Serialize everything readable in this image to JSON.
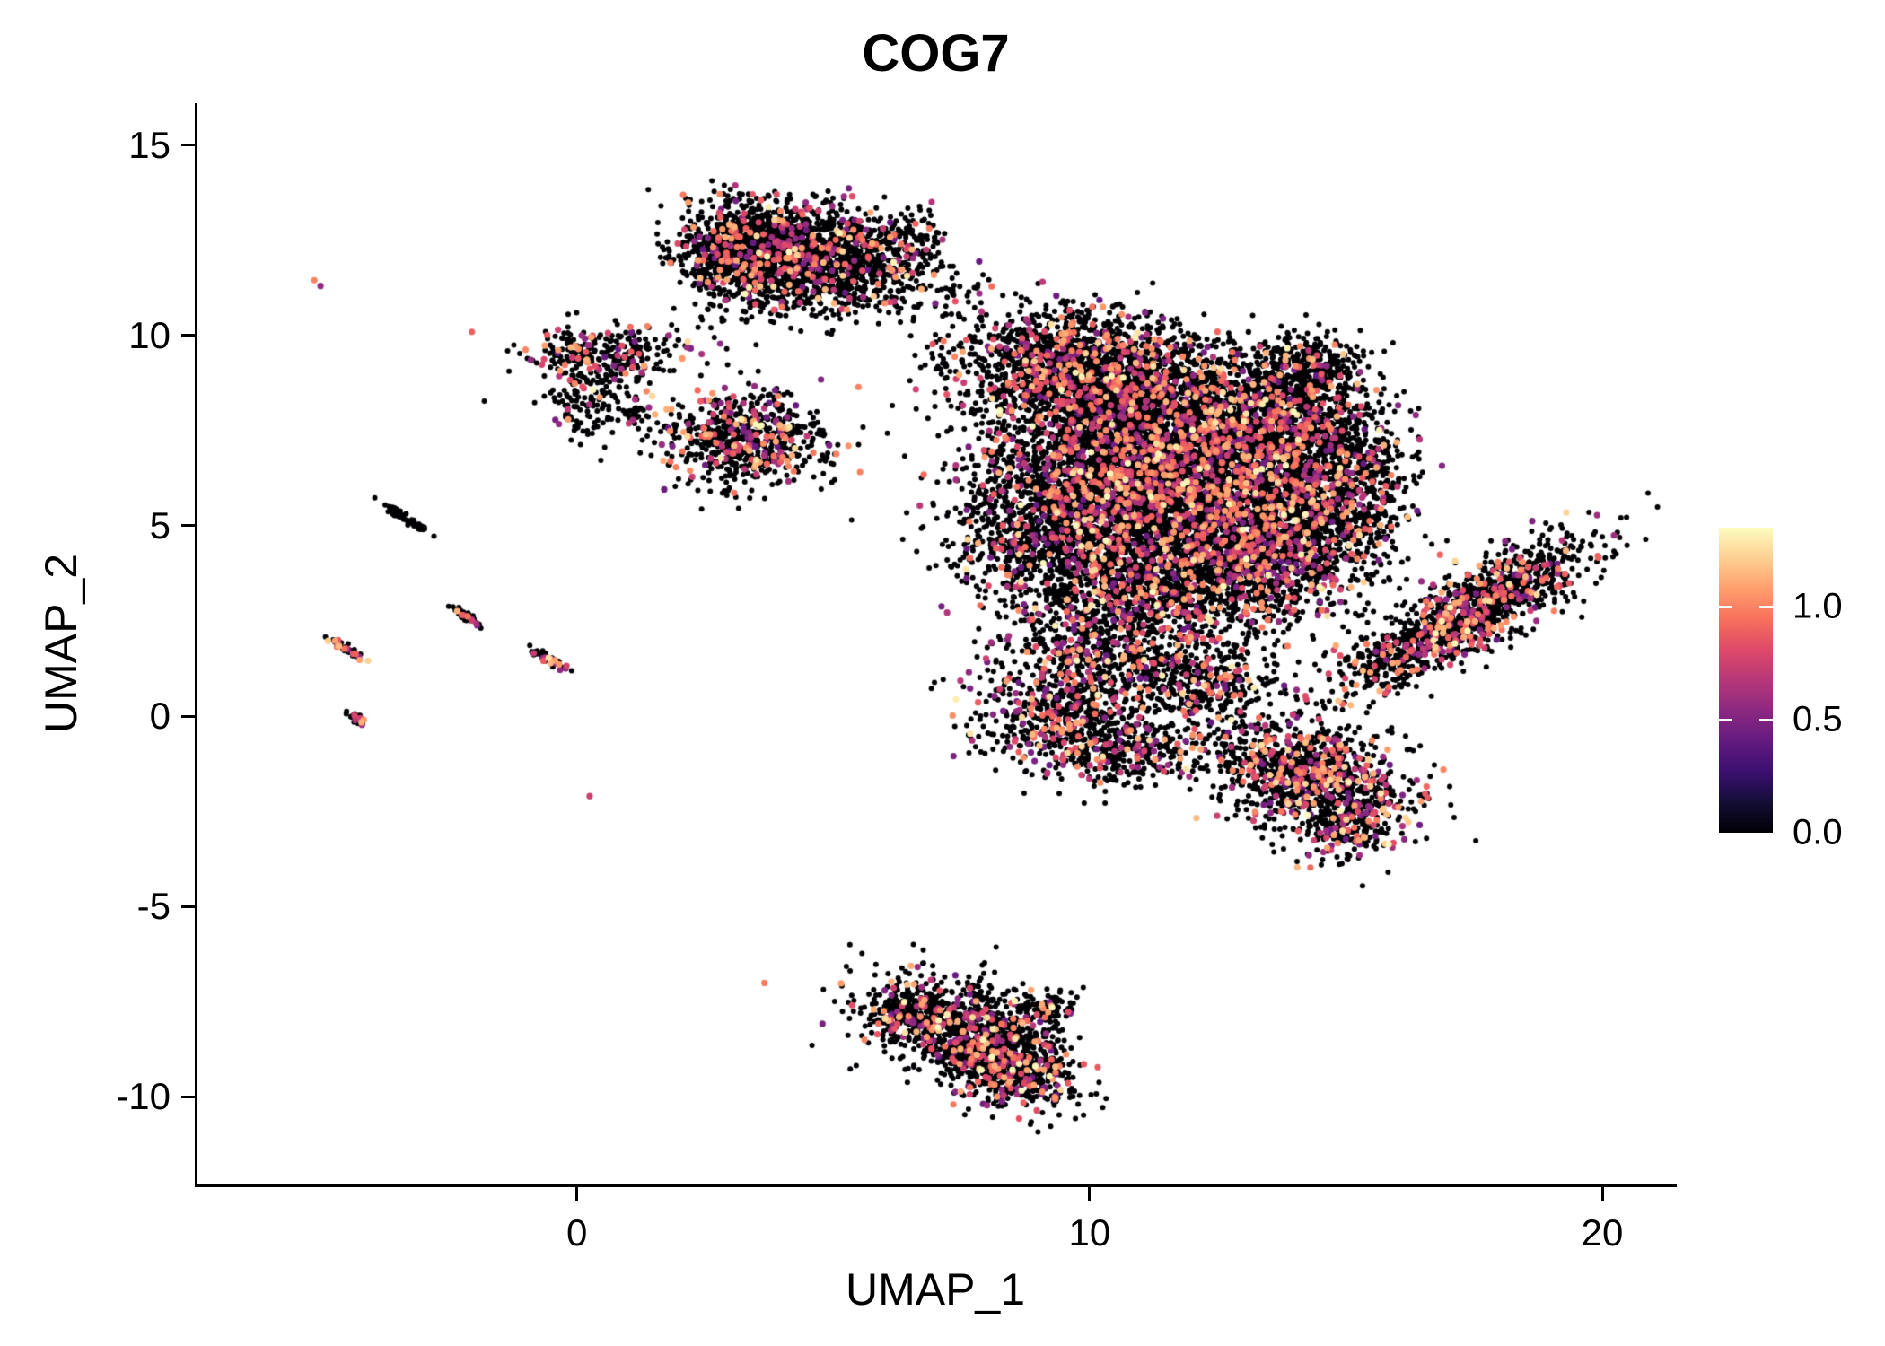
{
  "title": "COG7",
  "axes": {
    "xlabel": "UMAP_1",
    "ylabel": "UMAP_2",
    "xlim": [
      -7.4,
      21.4
    ],
    "ylim": [
      -12.3,
      16.1
    ],
    "x_ticks": [
      {
        "value": 0,
        "label": "0"
      },
      {
        "value": 10,
        "label": "10"
      },
      {
        "value": 20,
        "label": "20"
      }
    ],
    "y_ticks": [
      {
        "value": 15,
        "label": "15"
      },
      {
        "value": 10,
        "label": "10"
      },
      {
        "value": 5,
        "label": "5"
      },
      {
        "value": 0,
        "label": "0"
      },
      {
        "value": -5,
        "label": "-5"
      },
      {
        "value": -10,
        "label": "-10"
      }
    ]
  },
  "colorbar": {
    "domain": [
      0,
      1.35
    ],
    "ticks": [
      {
        "value": 1.0,
        "label": "1.0"
      },
      {
        "value": 0.5,
        "label": "0.5"
      },
      {
        "value": 0.0,
        "label": "0.0"
      }
    ],
    "colormap": "magma",
    "stops": [
      [
        0,
        "#000004"
      ],
      [
        0.1,
        "#140e36"
      ],
      [
        0.2,
        "#3b0f70"
      ],
      [
        0.3,
        "#641a80"
      ],
      [
        0.4,
        "#8c2981"
      ],
      [
        0.5,
        "#b73779"
      ],
      [
        0.6,
        "#de4968"
      ],
      [
        0.7,
        "#f7705c"
      ],
      [
        0.8,
        "#fe9f6d"
      ],
      [
        0.9,
        "#fecf92"
      ],
      [
        1,
        "#fcfdbf"
      ]
    ]
  },
  "chart_data": {
    "type": "scatter",
    "title": "COG7",
    "xlabel": "UMAP_1",
    "ylabel": "UMAP_2",
    "xlim": [
      -7.4,
      21.4
    ],
    "ylim": [
      -12.3,
      16.1
    ],
    "grid": false,
    "legend_position": "right",
    "seed": 42,
    "point_radius_px": {
      "zero": 3.0,
      "colored": 3.6
    },
    "expression_value_ranges": [
      [
        0.4,
        0.9,
        0.62
      ],
      [
        0.9,
        1.15,
        0.3
      ],
      [
        1.15,
        1.35,
        0.08
      ]
    ],
    "clusters": [
      {
        "name": "top-blob-a",
        "cx": 3.6,
        "cy": 12.5,
        "sx": 0.85,
        "sy": 0.55,
        "rot": 0,
        "n": 900,
        "colored_frac": 0.15
      },
      {
        "name": "top-blob-b",
        "cx": 5.0,
        "cy": 12.1,
        "sx": 0.8,
        "sy": 0.6,
        "rot": 0,
        "n": 700,
        "colored_frac": 0.15
      },
      {
        "name": "top-blob-c",
        "cx": 4.0,
        "cy": 11.3,
        "sx": 0.9,
        "sy": 0.5,
        "rot": 0,
        "n": 350,
        "colored_frac": 0.12
      },
      {
        "name": "top-blob-d",
        "cx": 5.9,
        "cy": 11.4,
        "sx": 0.6,
        "sy": 0.45,
        "rot": 0,
        "n": 130,
        "colored_frac": 0.1
      },
      {
        "name": "top-blob-e",
        "cx": 6.5,
        "cy": 12.5,
        "sx": 0.35,
        "sy": 0.4,
        "rot": 0,
        "n": 90,
        "colored_frac": 0.12
      },
      {
        "name": "top-blob-f",
        "cx": 2.7,
        "cy": 12.0,
        "sx": 0.35,
        "sy": 0.45,
        "rot": 0,
        "n": 150,
        "colored_frac": 0.15
      },
      {
        "name": "northwest-a",
        "cx": 0.6,
        "cy": 9.5,
        "sx": 0.8,
        "sy": 0.38,
        "rot": 0,
        "n": 280,
        "colored_frac": 0.2
      },
      {
        "name": "northwest-b",
        "cx": 0.25,
        "cy": 8.3,
        "sx": 0.45,
        "sy": 0.5,
        "rot": 0,
        "n": 140,
        "colored_frac": 0.15
      },
      {
        "name": "northwest-c",
        "cx": 1.15,
        "cy": 7.85,
        "sx": 0.2,
        "sy": 0.18,
        "rot": 0,
        "n": 25,
        "colored_frac": 0.15
      },
      {
        "name": "west-mid",
        "cx": 3.3,
        "cy": 7.3,
        "sx": 0.8,
        "sy": 0.62,
        "rot": 0,
        "n": 700,
        "colored_frac": 0.22
      },
      {
        "name": "bridge-a",
        "cx": 7.6,
        "cy": 10.9,
        "sx": 0.55,
        "sy": 0.4,
        "rot": 0,
        "n": 55,
        "colored_frac": 0.1
      },
      {
        "name": "bridge-b",
        "cx": 6.9,
        "cy": 9.3,
        "sx": 0.3,
        "sy": 0.3,
        "rot": 0,
        "n": 15,
        "colored_frac": 0.1
      },
      {
        "name": "main-1",
        "cx": 9.6,
        "cy": 9.2,
        "sx": 1.05,
        "sy": 0.7,
        "rot": 0,
        "n": 1400,
        "colored_frac": 0.15
      },
      {
        "name": "main-2",
        "cx": 11.3,
        "cy": 8.1,
        "sx": 1.25,
        "sy": 0.85,
        "rot": 0,
        "n": 1800,
        "colored_frac": 0.18
      },
      {
        "name": "main-3",
        "cx": 10.5,
        "cy": 6.3,
        "sx": 1.35,
        "sy": 1.0,
        "rot": 0,
        "n": 2200,
        "colored_frac": 0.18
      },
      {
        "name": "main-4",
        "cx": 12.5,
        "cy": 5.8,
        "sx": 1.25,
        "sy": 1.05,
        "rot": 0,
        "n": 2000,
        "colored_frac": 0.18
      },
      {
        "name": "main-5",
        "cx": 13.9,
        "cy": 7.4,
        "sx": 0.8,
        "sy": 0.95,
        "rot": 0,
        "n": 900,
        "colored_frac": 0.18
      },
      {
        "name": "main-6",
        "cx": 14.2,
        "cy": 9.0,
        "sx": 0.55,
        "sy": 0.55,
        "rot": 0,
        "n": 400,
        "colored_frac": 0.15
      },
      {
        "name": "main-7",
        "cx": 9.3,
        "cy": 4.6,
        "sx": 0.9,
        "sy": 0.8,
        "rot": 0,
        "n": 800,
        "colored_frac": 0.18
      },
      {
        "name": "main-8",
        "cx": 11.5,
        "cy": 3.6,
        "sx": 1.15,
        "sy": 0.8,
        "rot": 0,
        "n": 1000,
        "colored_frac": 0.18
      },
      {
        "name": "main-9",
        "cx": 13.3,
        "cy": 3.9,
        "sx": 0.9,
        "sy": 0.7,
        "rot": 0,
        "n": 700,
        "colored_frac": 0.18
      },
      {
        "name": "main-10",
        "cx": 10.3,
        "cy": 1.8,
        "sx": 1.05,
        "sy": 0.85,
        "rot": 0,
        "n": 700,
        "colored_frac": 0.2
      },
      {
        "name": "main-11",
        "cx": 9.5,
        "cy": 0.0,
        "sx": 0.85,
        "sy": 0.75,
        "rot": 0,
        "n": 500,
        "colored_frac": 0.22
      },
      {
        "name": "main-12",
        "cx": 10.8,
        "cy": -0.9,
        "sx": 0.8,
        "sy": 0.5,
        "rot": 0,
        "n": 300,
        "colored_frac": 0.22
      },
      {
        "name": "main-13",
        "cx": 12.3,
        "cy": 0.9,
        "sx": 0.8,
        "sy": 0.65,
        "rot": 0,
        "n": 350,
        "colored_frac": 0.15
      },
      {
        "name": "main-14",
        "cx": 14.6,
        "cy": 5.0,
        "sx": 0.7,
        "sy": 0.75,
        "rot": 0,
        "n": 500,
        "colored_frac": 0.18
      },
      {
        "name": "main-15",
        "cx": 15.3,
        "cy": 6.6,
        "sx": 0.5,
        "sy": 0.8,
        "rot": 0,
        "n": 300,
        "colored_frac": 0.18
      },
      {
        "name": "east-band",
        "cx": 17.4,
        "cy": 2.7,
        "sx": 1.5,
        "sy": 0.45,
        "rot": 40,
        "n": 1300,
        "colored_frac": 0.22
      },
      {
        "name": "east-bridge",
        "cx": 15.7,
        "cy": 1.4,
        "sx": 0.4,
        "sy": 0.3,
        "rot": 35,
        "n": 70,
        "colored_frac": 0.15
      },
      {
        "name": "southeast-a",
        "cx": 14.3,
        "cy": -1.6,
        "sx": 1.0,
        "sy": 0.65,
        "rot": -25,
        "n": 1100,
        "colored_frac": 0.25
      },
      {
        "name": "southeast-b",
        "cx": 15.0,
        "cy": -3.0,
        "sx": 0.45,
        "sy": 0.5,
        "rot": -40,
        "n": 150,
        "colored_frac": 0.2
      },
      {
        "name": "south-a",
        "cx": 7.4,
        "cy": -8.1,
        "sx": 0.9,
        "sy": 0.6,
        "rot": -20,
        "n": 800,
        "colored_frac": 0.18
      },
      {
        "name": "south-b",
        "cx": 8.4,
        "cy": -9.2,
        "sx": 0.7,
        "sy": 0.5,
        "rot": -30,
        "n": 700,
        "colored_frac": 0.2
      },
      {
        "name": "south-c",
        "cx": 9.2,
        "cy": -7.7,
        "sx": 0.3,
        "sy": 0.25,
        "rot": 0,
        "n": 80,
        "colored_frac": 0.15
      },
      {
        "name": "south-d",
        "cx": 6.3,
        "cy": -7.8,
        "sx": 0.35,
        "sy": 0.3,
        "rot": 0,
        "n": 120,
        "colored_frac": 0.15
      },
      {
        "name": "streak-1",
        "cx": -3.35,
        "cy": 5.2,
        "sx": 0.28,
        "sy": 0.05,
        "rot": -40,
        "n": 60,
        "colored_frac": 0.03
      },
      {
        "name": "streak-2",
        "cx": -2.15,
        "cy": 2.6,
        "sx": 0.18,
        "sy": 0.05,
        "rot": -40,
        "n": 45,
        "colored_frac": 0.25
      },
      {
        "name": "streak-3",
        "cx": -4.5,
        "cy": 1.75,
        "sx": 0.22,
        "sy": 0.05,
        "rot": -40,
        "n": 55,
        "colored_frac": 0.3
      },
      {
        "name": "streak-4",
        "cx": -0.55,
        "cy": 1.5,
        "sx": 0.22,
        "sy": 0.06,
        "rot": -40,
        "n": 55,
        "colored_frac": 0.45
      },
      {
        "name": "streak-5",
        "cx": -4.3,
        "cy": -0.05,
        "sx": 0.12,
        "sy": 0.05,
        "rot": -40,
        "n": 25,
        "colored_frac": 0.3
      }
    ],
    "singletons": [
      {
        "x": -5.12,
        "y": 11.45,
        "value": 1.0
      },
      {
        "x": -5.0,
        "y": 11.3,
        "value": 0.55
      },
      {
        "x": 0.25,
        "y": -2.1,
        "value": 0.75
      }
    ]
  }
}
